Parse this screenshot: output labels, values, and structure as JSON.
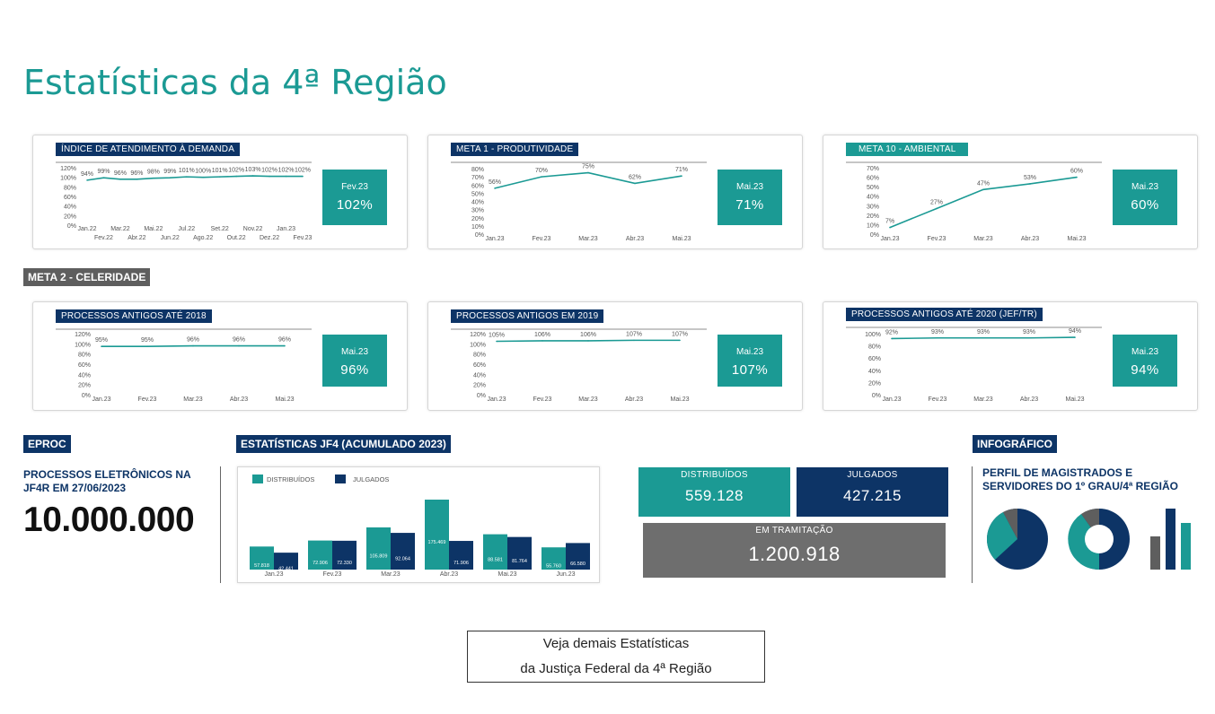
{
  "page": {
    "title": "Estatísticas da 4ª Região"
  },
  "colors": {
    "teal": "#1b9a94",
    "navy": "#0d3466",
    "gray": "#5e5e5e",
    "gray_box": "#6e6e6e"
  },
  "line_cards": [
    {
      "title": "ÍNDICE DE ATENDIMENTO À DEMANDA",
      "title_style": "navy",
      "kpi_period": "Fev.23",
      "kpi_value": "102%",
      "y_ticks": [
        "120%",
        "100%",
        "80%",
        "60%",
        "40%",
        "20%",
        "0%"
      ],
      "x_ticks_top": [
        "Jan.22",
        "Mar.22",
        "Mai.22",
        "Jul.22",
        "Set.22",
        "Nov.22",
        "Jan.23"
      ],
      "x_ticks_bottom": [
        "Fev.22",
        "Abr.22",
        "Jun.22",
        "Ago.22",
        "Out.22",
        "Dez.22",
        "Fev.23"
      ],
      "data_labels": [
        "94%",
        "99%",
        "96%",
        "96%",
        "98%",
        "99%",
        "101%",
        "100%",
        "101%",
        "102%",
        "103%",
        "102%",
        "102%",
        "102%"
      ]
    },
    {
      "title": "META 1 - PRODUTIVIDADE",
      "title_style": "navy",
      "kpi_period": "Mai.23",
      "kpi_value": "71%",
      "y_ticks": [
        "80%",
        "70%",
        "60%",
        "50%",
        "40%",
        "30%",
        "20%",
        "10%",
        "0%"
      ],
      "x_ticks": [
        "Jan.23",
        "Fev.23",
        "Mar.23",
        "Abr.23",
        "Mai.23"
      ],
      "data_labels": [
        "56%",
        "70%",
        "75%",
        "62%",
        "71%"
      ]
    },
    {
      "title": "META 10 - AMBIENTAL",
      "title_style": "teal",
      "kpi_period": "Mai.23",
      "kpi_value": "60%",
      "y_ticks": [
        "70%",
        "60%",
        "50%",
        "40%",
        "30%",
        "20%",
        "10%",
        "0%"
      ],
      "x_ticks": [
        "Jan.23",
        "Fev.23",
        "Mar.23",
        "Abr.23",
        "Mai.23"
      ],
      "data_labels": [
        "7%",
        "27%",
        "47%",
        "53%",
        "60%"
      ]
    },
    {
      "title": "PROCESSOS ANTIGOS ATÉ 2018",
      "title_style": "navy",
      "kpi_period": "Mai.23",
      "kpi_value": "96%",
      "y_ticks": [
        "120%",
        "100%",
        "80%",
        "60%",
        "40%",
        "20%",
        "0%"
      ],
      "x_ticks": [
        "Jan.23",
        "Fev.23",
        "Mar.23",
        "Abr.23",
        "Mai.23"
      ],
      "data_labels": [
        "95%",
        "95%",
        "96%",
        "96%",
        "96%"
      ]
    },
    {
      "title": "PROCESSOS ANTIGOS EM 2019",
      "title_style": "navy",
      "kpi_period": "Mai.23",
      "kpi_value": "107%",
      "y_ticks": [
        "120%",
        "100%",
        "80%",
        "60%",
        "40%",
        "20%",
        "0%"
      ],
      "x_ticks": [
        "Jan.23",
        "Fev.23",
        "Mar.23",
        "Abr.23",
        "Mai.23"
      ],
      "data_labels": [
        "105%",
        "106%",
        "106%",
        "107%",
        "107%"
      ]
    },
    {
      "title": "PROCESSOS ANTIGOS ATÉ 2020 (JEF/TR)",
      "title_style": "navy",
      "kpi_period": "Mai.23",
      "kpi_value": "94%",
      "y_ticks": [
        "100%",
        "80%",
        "60%",
        "40%",
        "20%",
        "0%"
      ],
      "x_ticks": [
        "Jan.23",
        "Fev.23",
        "Mar.23",
        "Abr.23",
        "Mai.23"
      ],
      "data_labels": [
        "92%",
        "93%",
        "93%",
        "93%",
        "94%"
      ]
    }
  ],
  "chart_data": [
    {
      "type": "line",
      "title": "ÍNDICE DE ATENDIMENTO À DEMANDA",
      "x": [
        "Jan.22",
        "Fev.22",
        "Mar.22",
        "Abr.22",
        "Mai.22",
        "Jun.22",
        "Jul.22",
        "Ago.22",
        "Set.22",
        "Out.22",
        "Nov.22",
        "Dez.22",
        "Jan.23",
        "Fev.23"
      ],
      "values": [
        94,
        99,
        96,
        96,
        98,
        99,
        101,
        100,
        101,
        102,
        103,
        102,
        102,
        102
      ],
      "ylim": [
        0,
        120
      ]
    },
    {
      "type": "line",
      "title": "META 1 - PRODUTIVIDADE",
      "x": [
        "Jan.23",
        "Fev.23",
        "Mar.23",
        "Abr.23",
        "Mai.23"
      ],
      "values": [
        56,
        70,
        75,
        62,
        71
      ],
      "ylim": [
        0,
        80
      ]
    },
    {
      "type": "line",
      "title": "META 10 - AMBIENTAL",
      "x": [
        "Jan.23",
        "Fev.23",
        "Mar.23",
        "Abr.23",
        "Mai.23"
      ],
      "values": [
        7,
        27,
        47,
        53,
        60
      ],
      "ylim": [
        0,
        70
      ]
    },
    {
      "type": "line",
      "title": "PROCESSOS ANTIGOS ATÉ 2018",
      "x": [
        "Jan.23",
        "Fev.23",
        "Mar.23",
        "Abr.23",
        "Mai.23"
      ],
      "values": [
        95,
        95,
        96,
        96,
        96
      ],
      "ylim": [
        0,
        120
      ]
    },
    {
      "type": "line",
      "title": "PROCESSOS ANTIGOS EM 2019",
      "x": [
        "Jan.23",
        "Fev.23",
        "Mar.23",
        "Abr.23",
        "Mai.23"
      ],
      "values": [
        105,
        106,
        106,
        107,
        107
      ],
      "ylim": [
        0,
        120
      ]
    },
    {
      "type": "line",
      "title": "PROCESSOS ANTIGOS ATÉ 2020 (JEF/TR)",
      "x": [
        "Jan.23",
        "Fev.23",
        "Mar.23",
        "Abr.23",
        "Mai.23"
      ],
      "values": [
        92,
        93,
        93,
        93,
        94
      ],
      "ylim": [
        0,
        100
      ]
    },
    {
      "type": "bar",
      "categories": [
        "Jan.23",
        "Fev.23",
        "Mar.23",
        "Abr.23",
        "Mai.23",
        "Jun.23"
      ],
      "series": [
        {
          "name": "DISTRIBUÍDOS",
          "values": [
            57818,
            72906,
            105809,
            175469,
            88581,
            55760
          ],
          "labels": [
            "57.818",
            "72.906",
            "105.809",
            "175.469",
            "88.581",
            "55.760"
          ]
        },
        {
          "name": "JULGADOS",
          "values": [
            42441,
            72330,
            92064,
            71906,
            81764,
            66580
          ],
          "labels": [
            "42.441",
            "72.330",
            "92.064",
            "71.906",
            "81.764",
            "66.580"
          ]
        }
      ]
    }
  ],
  "sections": {
    "meta2": "META 2 - CELERIDADE",
    "eproc": "EPROC",
    "estatisticas": "ESTATÍSTICAS JF4 (ACUMULADO 2023)",
    "infografico": "INFOGRÁFICO"
  },
  "eproc": {
    "caption": "PROCESSOS ELETRÔNICOS NA JF4R EM 27/06/2023",
    "value": "10.000.000"
  },
  "totals": {
    "distribuidos_label": "DISTRIBUÍDOS",
    "distribuidos_value": "559.128",
    "julgados_label": "JULGADOS",
    "julgados_value": "427.215",
    "tramitacao_label": "EM TRAMITAÇÃO",
    "tramitacao_value": "1.200.918"
  },
  "infographic": {
    "caption": "PERFIL DE MAGISTRADOS E SERVIDORES DO 1º GRAU/4ª REGIÃO"
  },
  "link": {
    "line1": "Veja demais Estatísticas",
    "line2": "da Justiça Federal da 4ª Região"
  }
}
